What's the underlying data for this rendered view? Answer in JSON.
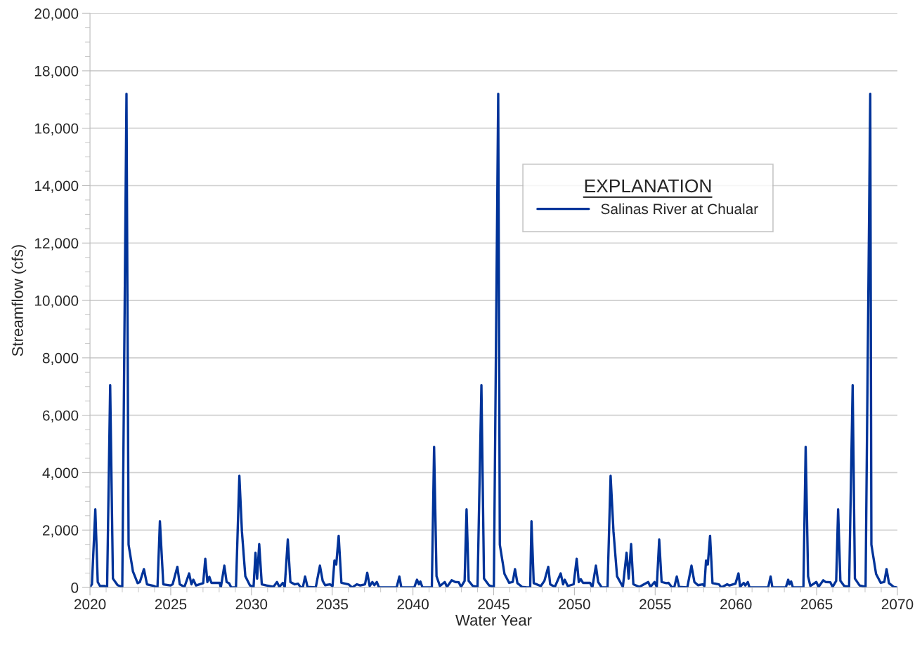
{
  "chart_data": {
    "type": "line",
    "xlabel": "Water Year",
    "ylabel": "Streamflow (cfs)",
    "legend_title": "EXPLANATION",
    "legend": "top right",
    "grid": "y",
    "marker": "none",
    "line_style": "solid",
    "xlim": [
      2020,
      2070
    ],
    "xticks": [
      2020,
      {
        "value": 2021,
        "label": null
      },
      {
        "value": 2022,
        "label": null
      },
      {
        "value": 2023,
        "label": null
      },
      {
        "value": 2024,
        "label": null
      },
      2025,
      {
        "value": 2026,
        "label": null
      },
      {
        "value": 2027,
        "label": null
      },
      {
        "value": 2028,
        "label": null
      },
      {
        "value": 2029,
        "label": null
      },
      2030,
      {
        "value": 2031,
        "label": null
      },
      {
        "value": 2032,
        "label": null
      },
      {
        "value": 2033,
        "label": null
      },
      {
        "value": 2034,
        "label": null
      },
      2035,
      {
        "value": 2036,
        "label": null
      },
      {
        "value": 2037,
        "label": null
      },
      {
        "value": 2038,
        "label": null
      },
      {
        "value": 2039,
        "label": null
      },
      2040,
      {
        "value": 2041,
        "label": null
      },
      {
        "value": 2042,
        "label": null
      },
      {
        "value": 2043,
        "label": null
      },
      {
        "value": 2044,
        "label": null
      },
      2045,
      {
        "value": 2046,
        "label": null
      },
      {
        "value": 2047,
        "label": null
      },
      {
        "value": 2048,
        "label": null
      },
      {
        "value": 2049,
        "label": null
      },
      2050,
      {
        "value": 2051,
        "label": null
      },
      {
        "value": 2052,
        "label": null
      },
      {
        "value": 2053,
        "label": null
      },
      {
        "value": 2054,
        "label": null
      },
      2055,
      {
        "value": 2056,
        "label": null
      },
      {
        "value": 2057,
        "label": null
      },
      {
        "value": 2058,
        "label": null
      },
      {
        "value": 2059,
        "label": null
      },
      2060,
      {
        "value": 2061,
        "label": null
      },
      {
        "value": 2062,
        "label": null
      },
      {
        "value": 2063,
        "label": null
      },
      {
        "value": 2064,
        "label": null
      },
      2065,
      {
        "value": 2066,
        "label": null
      },
      {
        "value": 2067,
        "label": null
      },
      {
        "value": 2068,
        "label": null
      },
      {
        "value": 2069,
        "label": null
      },
      2070
    ],
    "ylim": [
      0,
      20000
    ],
    "yticks": [
      0,
      {
        "value": 500,
        "label": null
      },
      {
        "value": 1000,
        "label": null
      },
      {
        "value": 1500,
        "label": null
      },
      {
        "value": 2000,
        "label": "2,000"
      },
      {
        "value": 2500,
        "label": null
      },
      {
        "value": 3000,
        "label": null
      },
      {
        "value": 3500,
        "label": null
      },
      {
        "value": 4000,
        "label": "4,000"
      },
      {
        "value": 4500,
        "label": null
      },
      {
        "value": 5000,
        "label": null
      },
      {
        "value": 5500,
        "label": null
      },
      {
        "value": 6000,
        "label": "6,000"
      },
      {
        "value": 6500,
        "label": null
      },
      {
        "value": 7000,
        "label": null
      },
      {
        "value": 7500,
        "label": null
      },
      {
        "value": 8000,
        "label": "8,000"
      },
      {
        "value": 8500,
        "label": null
      },
      {
        "value": 9000,
        "label": null
      },
      {
        "value": 9500,
        "label": null
      },
      {
        "value": 10000,
        "label": "10,000"
      },
      {
        "value": 10500,
        "label": null
      },
      {
        "value": 11000,
        "label": null
      },
      {
        "value": 11500,
        "label": null
      },
      {
        "value": 12000,
        "label": "12,000"
      },
      {
        "value": 12500,
        "label": null
      },
      {
        "value": 13000,
        "label": null
      },
      {
        "value": 13500,
        "label": null
      },
      {
        "value": 14000,
        "label": "14,000"
      },
      {
        "value": 14500,
        "label": null
      },
      {
        "value": 15000,
        "label": null
      },
      {
        "value": 15500,
        "label": null
      },
      {
        "value": 16000,
        "label": "16,000"
      },
      {
        "value": 16500,
        "label": null
      },
      {
        "value": 17000,
        "label": null
      },
      {
        "value": 17500,
        "label": null
      },
      {
        "value": 18000,
        "label": "18,000"
      },
      {
        "value": 18500,
        "label": null
      },
      {
        "value": 19000,
        "label": null
      },
      {
        "value": 19500,
        "label": null
      },
      {
        "value": 20000,
        "label": "20,000"
      }
    ],
    "series": [
      {
        "name": "Salinas River at Chualar",
        "color": "#003399",
        "x": [
          2020.0,
          2020.12,
          2020.33,
          2020.48,
          2020.62,
          2020.91,
          2021.06,
          2021.25,
          2021.42,
          2021.71,
          2022.0,
          2022.26,
          2022.39,
          2022.66,
          2022.95,
          2023.09,
          2023.34,
          2023.53,
          2023.96,
          2024.18,
          2024.33,
          2024.54,
          2024.98,
          2025.12,
          2025.41,
          2025.56,
          2025.85,
          2026.14,
          2026.28,
          2026.4,
          2026.57,
          2027.01,
          2027.14,
          2027.27,
          2027.39,
          2027.52,
          2028.03,
          2028.1,
          2028.17,
          2028.32,
          2028.46,
          2028.61,
          2028.75,
          2029.04,
          2029.25,
          2029.41,
          2029.62,
          2029.91,
          2030.13,
          2030.25,
          2030.35,
          2030.48,
          2030.64,
          2030.93,
          2031.36,
          2031.58,
          2031.73,
          2031.94,
          2032.06,
          2032.25,
          2032.41,
          2032.67,
          2032.89,
          2033.03,
          2033.18,
          2033.32,
          2033.47,
          2033.98,
          2034.24,
          2034.41,
          2034.56,
          2034.85,
          2035.02,
          2035.14,
          2035.25,
          2035.4,
          2035.57,
          2036.01,
          2036.23,
          2036.52,
          2036.74,
          2037.03,
          2037.17,
          2037.32,
          2037.49,
          2037.61,
          2037.76,
          2037.9,
          2038.34,
          2038.99,
          2039.16,
          2039.28,
          2040.08,
          2040.25,
          2040.37,
          2040.46,
          2040.59,
          2041.17,
          2041.31,
          2041.46,
          2041.67,
          2041.97,
          2042.11,
          2042.4,
          2042.62,
          2042.84,
          2042.98,
          2043.2,
          2043.32,
          2043.45,
          2043.71,
          2044.0,
          2044.24,
          2044.4,
          2044.72,
          2045.01,
          2045.28,
          2045.38,
          2045.67,
          2045.96,
          2046.18,
          2046.32,
          2046.47,
          2046.76,
          2047.05,
          2047.26,
          2047.34,
          2047.48,
          2047.92,
          2048.14,
          2048.38,
          2048.5,
          2048.79,
          2049.15,
          2049.3,
          2049.4,
          2049.59,
          2049.95,
          2050.14,
          2050.27,
          2050.39,
          2050.53,
          2050.97,
          2051.11,
          2051.33,
          2051.47,
          2051.69,
          2052.05,
          2052.24,
          2052.42,
          2052.64,
          2053.0,
          2053.23,
          2053.36,
          2053.51,
          2053.65,
          2054.02,
          2054.31,
          2054.57,
          2054.71,
          2054.96,
          2055.1,
          2055.25,
          2055.4,
          2055.69,
          2055.83,
          2056.05,
          2056.19,
          2056.34,
          2056.48,
          2056.99,
          2057.25,
          2057.43,
          2057.65,
          2057.94,
          2058.05,
          2058.15,
          2058.26,
          2058.4,
          2058.55,
          2058.95,
          2059.1,
          2059.46,
          2059.6,
          2059.97,
          2060.16,
          2060.26,
          2060.48,
          2060.58,
          2060.74,
          2060.84,
          2061.35,
          2062.0,
          2062.15,
          2062.26,
          2063.09,
          2063.24,
          2063.31,
          2063.42,
          2063.53,
          2064.18,
          2064.32,
          2064.47,
          2064.61,
          2064.98,
          2065.12,
          2065.41,
          2065.56,
          2065.85,
          2065.99,
          2066.21,
          2066.33,
          2066.47,
          2066.71,
          2067.01,
          2067.23,
          2067.37,
          2067.66,
          2068.03,
          2068.32,
          2068.39,
          2068.68,
          2068.97,
          2069.19,
          2069.33,
          2069.48,
          2069.77,
          2069.99
        ],
        "values": [
          20,
          110,
          2720,
          190,
          50,
          50,
          0,
          7050,
          310,
          80,
          20,
          17200,
          1490,
          560,
          150,
          190,
          640,
          110,
          50,
          0,
          2310,
          110,
          70,
          110,
          720,
          110,
          20,
          490,
          110,
          270,
          70,
          150,
          1000,
          190,
          370,
          160,
          160,
          0,
          230,
          760,
          190,
          150,
          0,
          0,
          3890,
          1940,
          390,
          70,
          20,
          1210,
          310,
          1510,
          110,
          70,
          20,
          190,
          20,
          160,
          20,
          1670,
          190,
          110,
          130,
          20,
          0,
          380,
          20,
          0,
          760,
          230,
          80,
          110,
          50,
          940,
          800,
          1800,
          160,
          110,
          0,
          110,
          70,
          110,
          510,
          50,
          190,
          80,
          190,
          0,
          0,
          0,
          380,
          0,
          0,
          270,
          110,
          210,
          0,
          0,
          4900,
          390,
          50,
          190,
          20,
          250,
          190,
          180,
          20,
          230,
          2720,
          230,
          50,
          20,
          7050,
          310,
          70,
          20,
          17200,
          1490,
          470,
          160,
          190,
          640,
          150,
          20,
          0,
          0,
          2310,
          150,
          50,
          230,
          720,
          110,
          20,
          490,
          110,
          270,
          50,
          110,
          1000,
          190,
          290,
          160,
          160,
          0,
          760,
          190,
          0,
          0,
          3890,
          1940,
          390,
          20,
          1210,
          310,
          1510,
          110,
          20,
          110,
          190,
          20,
          190,
          20,
          1670,
          190,
          150,
          160,
          0,
          20,
          380,
          20,
          0,
          760,
          190,
          80,
          110,
          50,
          940,
          800,
          1800,
          150,
          110,
          0,
          110,
          70,
          130,
          490,
          20,
          160,
          70,
          190,
          0,
          0,
          0,
          380,
          0,
          0,
          270,
          110,
          210,
          0,
          0,
          4900,
          390,
          50,
          190,
          20,
          250,
          190,
          180,
          20,
          230,
          2720,
          230,
          50,
          20,
          7050,
          310,
          70,
          20,
          17200,
          1490,
          470,
          160,
          190,
          640,
          150,
          20,
          0
        ]
      }
    ]
  }
}
